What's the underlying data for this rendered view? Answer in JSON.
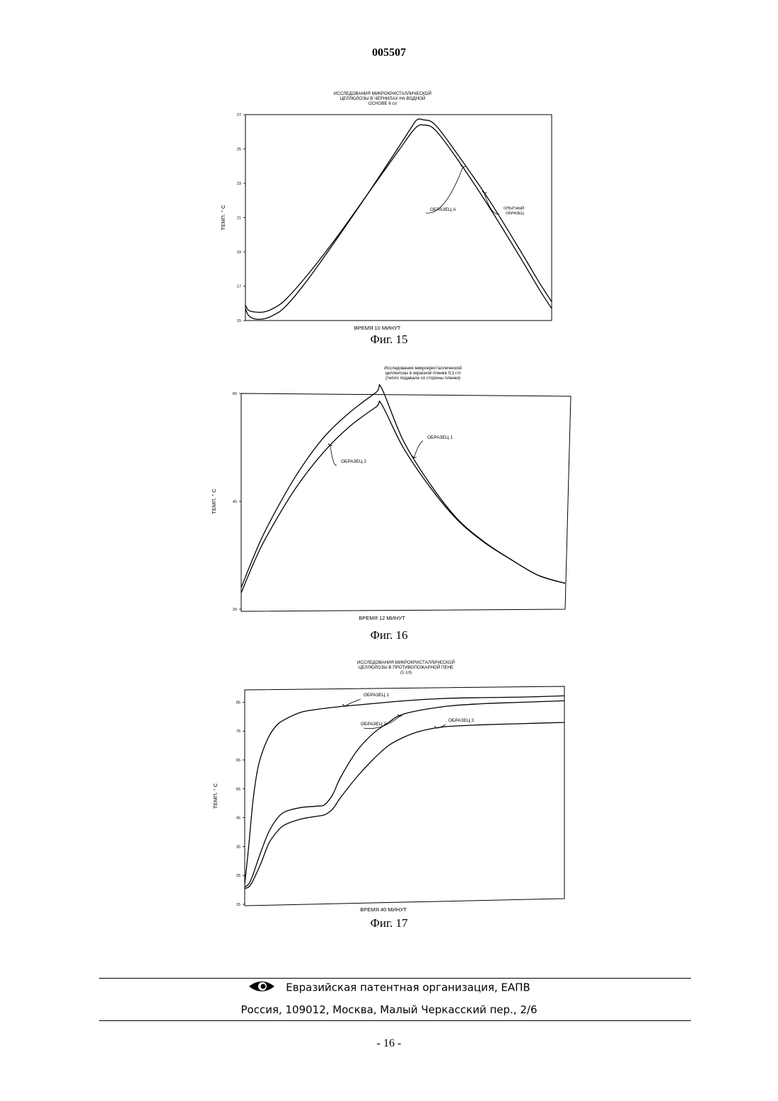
{
  "document": {
    "number": "005507",
    "page": "- 16 -"
  },
  "footer": {
    "organization": "Евразийская патентная организация, ЕАПВ",
    "address": "Россия, 109012, Москва, Малый Черкасский пер., 2/6",
    "logo_icon": "eye-logo-icon"
  },
  "chart_data": [
    {
      "type": "line",
      "caption": "Фиг. 15",
      "title": [
        "ИССЛЕДОВАНИЯ МИКРОКРИСТАЛЛИЧЕСКОЙ",
        "ЦЕЛЛЮЛОЗЫ В ЧЕРНИЛАХ НА ВОДНОЙ",
        "ОСНОВЕ 6 сл"
      ],
      "xlabel": "ВРЕМЯ 10 МИНУТ",
      "ylabel": "ТЕМП. ° С",
      "ylim": [
        15,
        27
      ],
      "xlim": [
        0,
        10
      ],
      "yticks": [
        15,
        17,
        19,
        21,
        23,
        25,
        27
      ],
      "ytick_labels": [
        "15",
        "17",
        "19",
        "21",
        "23",
        "25",
        "27"
      ],
      "series": [
        {
          "name": "ОБРАЗЕЦ А",
          "x": [
            0,
            0.1,
            0.3,
            0.6,
            0.9,
            1.3,
            2,
            3,
            4,
            5,
            5.4,
            5.6,
            5.8,
            6.2,
            7,
            8,
            9,
            9.6,
            10
          ],
          "y": [
            15.9,
            15.6,
            15.5,
            15.5,
            15.7,
            16.2,
            17.6,
            19.9,
            22.4,
            24.9,
            25.9,
            26.3,
            26.4,
            26.1,
            24.2,
            21.5,
            18.6,
            16.8,
            15.7
          ]
        },
        {
          "name": "ОПЫТНЫЙ ОБРАЗЕЦ",
          "x": [
            0,
            0.1,
            0.3,
            0.6,
            0.9,
            1.3,
            2,
            3,
            4,
            5,
            5.4,
            5.6,
            5.8,
            6.2,
            7,
            8,
            9,
            9.6,
            10
          ],
          "y": [
            15.7,
            15.3,
            15.1,
            15.1,
            15.3,
            15.8,
            17.3,
            19.8,
            22.4,
            25.1,
            26.2,
            26.7,
            26.7,
            26.4,
            24.5,
            21.9,
            19.0,
            17.2,
            16.1
          ]
        }
      ],
      "annotations": [
        {
          "text": "ОБРАЗЕЦ А",
          "target_series": 0,
          "at_x": 7.1
        },
        {
          "text": "ОПЫТНЫЙ",
          "text2": "ОБРАЗЕЦ",
          "target_series": 1,
          "at_x": 7.8
        }
      ]
    },
    {
      "type": "line",
      "caption": "Фиг. 16",
      "title": [
        "Исследования микрокристаллической",
        "целлюлозы в окрасной пленке 0,1 г/л",
        "(тепло подавали со стороны пленки)"
      ],
      "xlabel": "ВРЕМЯ 12 МИНУТ",
      "ylabel": "ТЕМП. ° С",
      "ylim": [
        20,
        60
      ],
      "xlim": [
        0,
        12
      ],
      "yticks": [
        20,
        40,
        60
      ],
      "ytick_labels": [
        "20",
        "40",
        "60"
      ],
      "series": [
        {
          "name": "ОБРАЗЕЦ 1",
          "x": [
            0,
            0.5,
            1,
            2,
            3,
            4,
            5,
            5.2,
            6,
            7,
            8,
            9,
            10,
            11,
            12
          ],
          "y": [
            24,
            30.2,
            35.6,
            44.5,
            51.5,
            56.4,
            60.2,
            61.0,
            51.3,
            43.2,
            36.8,
            32.5,
            29.2,
            26.3,
            24.8
          ]
        },
        {
          "name": "ОБРАЗЕЦ 2",
          "x": [
            0,
            0.5,
            1,
            2,
            3,
            4,
            5,
            5.2,
            6,
            7,
            8,
            9,
            10,
            11,
            12
          ],
          "y": [
            23,
            29.0,
            34.0,
            42.3,
            48.8,
            53.8,
            57.5,
            58.0,
            50.0,
            42.6,
            36.6,
            32.4,
            29.2,
            26.3,
            24.8
          ]
        }
      ],
      "annotations": [
        {
          "text": "ОБРАЗЕЦ 1",
          "target_series": 0,
          "at_x": 6.4
        },
        {
          "text": "ОБРАЗЕЦ 2",
          "target_series": 1,
          "at_x": 3.3
        }
      ]
    },
    {
      "type": "line",
      "caption": "Фиг. 17",
      "title": [
        "ИССЛЕДОВАНИЯ МИКРОКРИСТАЛЛИЧЕСКОЙ",
        "ЦЕЛЛЮЛОЗЫ В ПРОТИВОПОЖАРНОЙ ПЕНЕ",
        "(1 сл)"
      ],
      "xlabel": "ВРЕМЯ 40 МИНУТ",
      "ylabel": "ТЕМП. ° С",
      "ylim": [
        15,
        90
      ],
      "xlim": [
        0,
        40
      ],
      "yticks": [
        15,
        25,
        35,
        45,
        55,
        65,
        75,
        85
      ],
      "ytick_labels": [
        "15",
        "25",
        "35",
        "45",
        "55",
        "65",
        "75",
        "85"
      ],
      "series": [
        {
          "name": "ОБРАЗЕЦ 1",
          "x": [
            0,
            0.5,
            1,
            1.5,
            2,
            3,
            4,
            5,
            7,
            9,
            12,
            16,
            20,
            25,
            30,
            35,
            40
          ],
          "y": [
            22,
            35,
            50,
            60,
            66,
            73,
            77,
            79,
            81.5,
            82.5,
            83.5,
            84.5,
            85.5,
            86.3,
            86.6,
            86.8,
            87.2
          ]
        },
        {
          "name": "ОБРАЗЕЦ 2",
          "x": [
            0,
            0.5,
            1,
            2,
            3,
            4,
            5,
            7,
            9,
            10,
            11,
            12,
            14,
            16,
            18,
            20,
            25,
            30,
            35,
            40
          ],
          "y": [
            21,
            22,
            25,
            33,
            40,
            44.5,
            47,
            48.5,
            49,
            49.5,
            53,
            59,
            68,
            74,
            78,
            81,
            83.5,
            84.5,
            85,
            85.5
          ]
        },
        {
          "name": "ОБРАЗЕЦ 3",
          "x": [
            0,
            0.5,
            1,
            2,
            3,
            4,
            5,
            7,
            9,
            10,
            11,
            12,
            14,
            16,
            18,
            20,
            22,
            25,
            30,
            35,
            40
          ],
          "y": [
            20.5,
            21,
            23,
            29,
            36,
            40,
            42.5,
            44.5,
            45.5,
            46,
            48,
            52,
            59,
            65,
            70,
            73,
            75,
            76.5,
            77.2,
            77.6,
            78
          ]
        }
      ],
      "annotations": [
        {
          "text": "ОБРАЗЕЦ 1",
          "target_series": 0,
          "at_x": 12.5
        },
        {
          "text": "ОБРАЗЕЦ 2",
          "target_series": 1,
          "at_x": 19.4
        },
        {
          "text": "ОБРАЗЕЦ 3",
          "target_series": 2,
          "at_x": 24
        }
      ]
    }
  ]
}
